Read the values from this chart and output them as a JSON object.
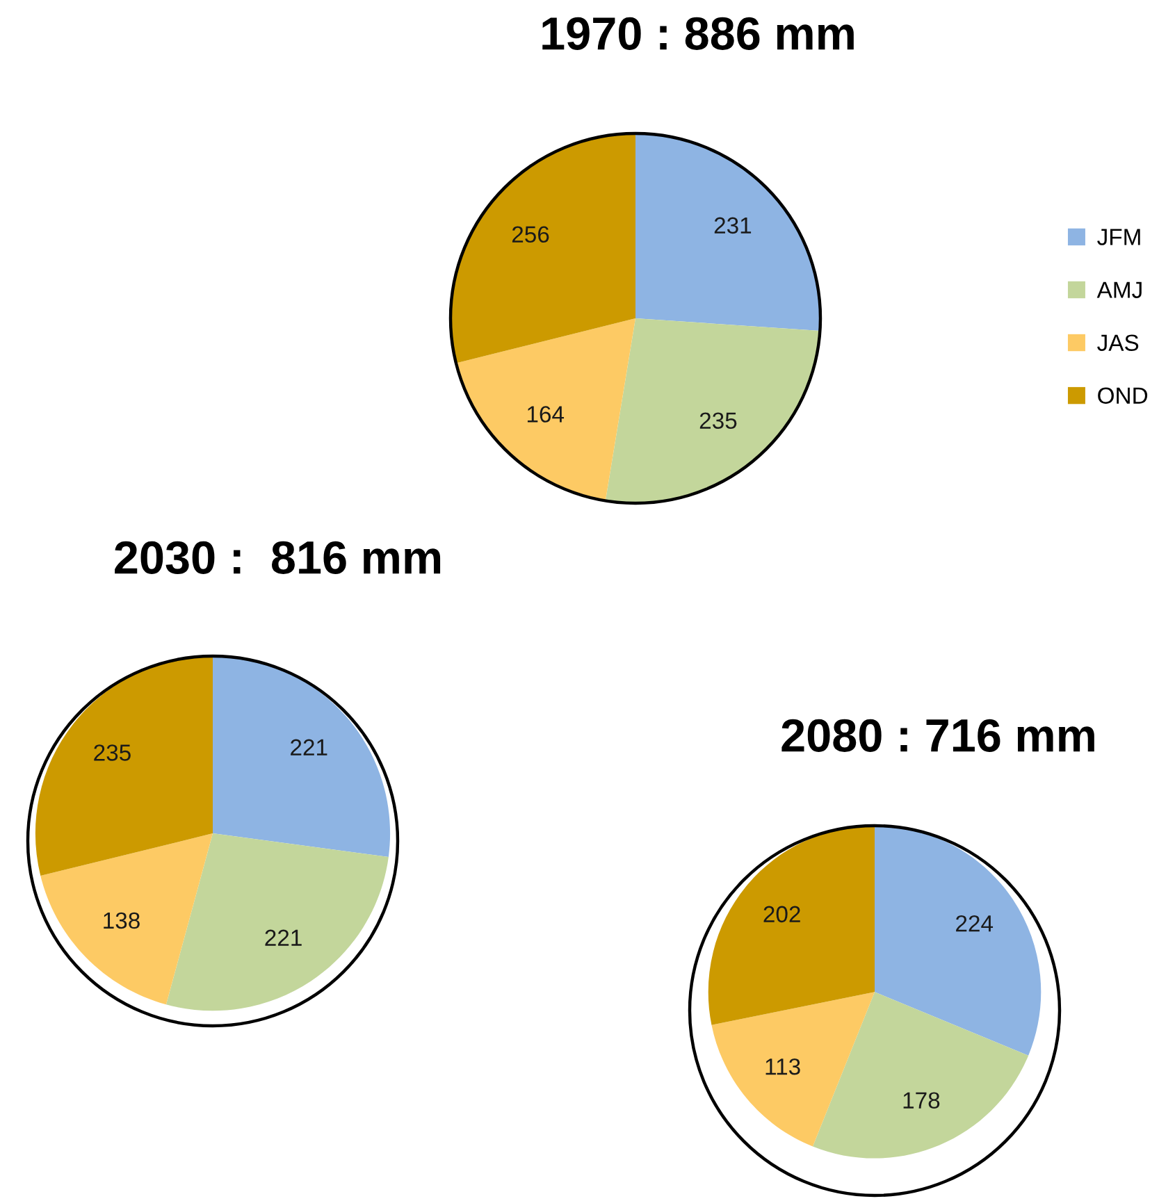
{
  "chart_data": [
    {
      "type": "pie",
      "title": "1970 : 886 mm",
      "categories": [
        "JFM",
        "AMJ",
        "JAS",
        "OND"
      ],
      "values": [
        231,
        235,
        164,
        256
      ],
      "colors": [
        "#8eb4e3",
        "#c3d69b",
        "#fdca64",
        "#cc9a00"
      ],
      "data_labels": true,
      "legend": "right"
    },
    {
      "type": "pie",
      "title": "2030 :  816 mm",
      "categories": [
        null,
        null,
        null,
        null
      ],
      "values": [
        221,
        221,
        138,
        235
      ],
      "colors": [
        "#8eb4e3",
        "#c3d69b",
        "#fdca64",
        "#cc9a00"
      ],
      "data_labels": true
    },
    {
      "type": "pie",
      "title": "2080 : 716 mm",
      "categories": [
        null,
        null,
        null,
        null
      ],
      "values": [
        224,
        178,
        113,
        202
      ],
      "colors": [
        "#8eb4e3",
        "#c3d69b",
        "#fdca64",
        "#cc9a00"
      ],
      "data_labels": true
    }
  ]
}
